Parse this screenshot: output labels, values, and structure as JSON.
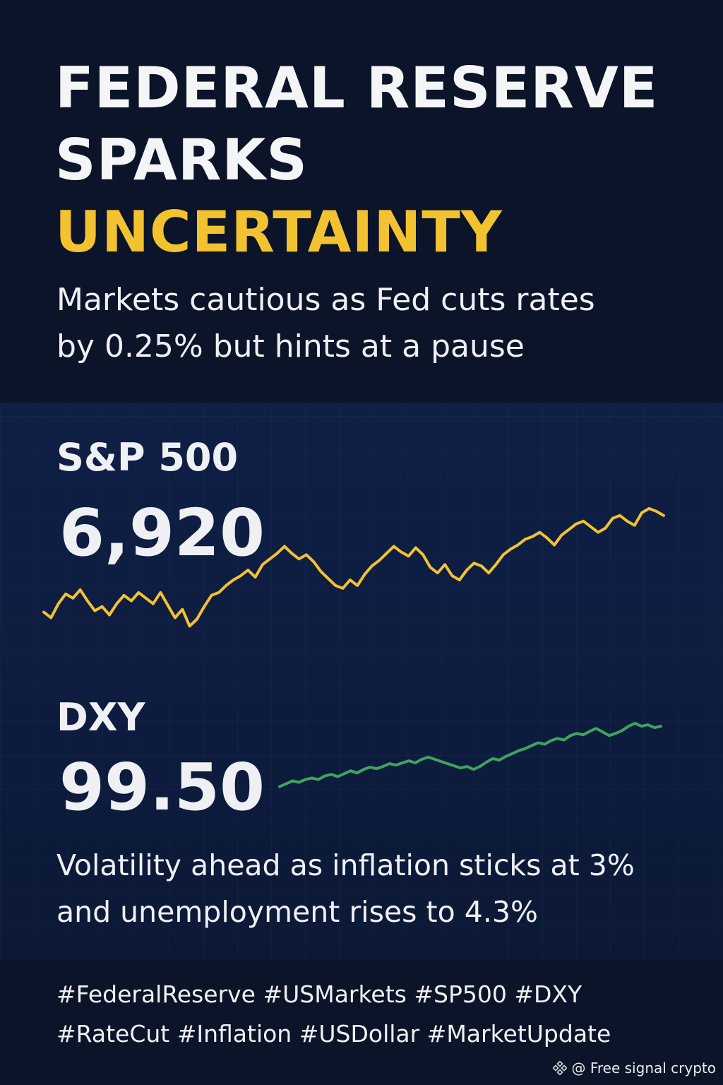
{
  "headline": {
    "line1": "FEDERAL RESERVE",
    "line2": "SPARKS",
    "line3": "UNCERTAINTY"
  },
  "subhead": {
    "line1": "Markets cautious as Fed cuts rates",
    "line2": "by 0.25% but hints at a pause"
  },
  "indices": {
    "sp500": {
      "label": "S&P 500",
      "value": "6,920"
    },
    "dxy": {
      "label": "DXY",
      "value": "99.50"
    }
  },
  "note": {
    "line1": "Volatility ahead as inflation sticks at 3%",
    "line2": "and unemployment rises to 4.3%"
  },
  "hashtags": {
    "line1": "#FederalReserve #USMarkets #SP500 #DXY",
    "line2": "#RateCut #Inflation #USDollar #MarketUpdate"
  },
  "watermark": {
    "icon": "diamond-logo-icon",
    "text": "@ Free signal crypto"
  },
  "colors": {
    "accent": "#f2c230",
    "sp_line": "#f2c230",
    "dxy_line": "#3fa35e",
    "background": "#0c1429"
  },
  "chart_data": [
    {
      "type": "line",
      "title": "S&P 500",
      "series": [
        {
          "name": "S&P 500",
          "values": [
            32,
            28,
            38,
            45,
            42,
            48,
            40,
            33,
            36,
            30,
            38,
            44,
            40,
            46,
            42,
            38,
            46,
            37,
            28,
            34,
            22,
            27,
            36,
            44,
            46,
            51,
            55,
            58,
            62,
            57,
            66,
            70,
            74,
            79,
            74,
            70,
            73,
            68,
            61,
            56,
            51,
            49,
            55,
            51,
            59,
            65,
            69,
            74,
            79,
            75,
            72,
            78,
            73,
            64,
            60,
            66,
            58,
            55,
            62,
            67,
            65,
            60,
            66,
            73,
            77,
            80,
            84,
            86,
            89,
            85,
            80,
            87,
            91,
            95,
            97,
            93,
            89,
            92,
            99,
            101,
            97,
            94,
            103,
            106,
            104,
            101
          ]
        }
      ],
      "ylim": [
        0,
        110
      ]
    },
    {
      "type": "line",
      "title": "DXY",
      "series": [
        {
          "name": "DXY",
          "values": [
            20,
            24,
            28,
            26,
            30,
            32,
            30,
            35,
            37,
            34,
            38,
            42,
            39,
            44,
            47,
            45,
            48,
            52,
            50,
            53,
            56,
            53,
            58,
            61,
            58,
            55,
            52,
            49,
            46,
            48,
            44,
            48,
            54,
            59,
            57,
            62,
            66,
            70,
            73,
            77,
            81,
            79,
            84,
            87,
            85,
            91,
            94,
            92,
            97,
            101,
            96,
            91,
            94,
            98,
            104,
            108,
            104,
            106,
            102,
            104
          ]
        }
      ],
      "ylim": [
        0,
        110
      ]
    }
  ]
}
